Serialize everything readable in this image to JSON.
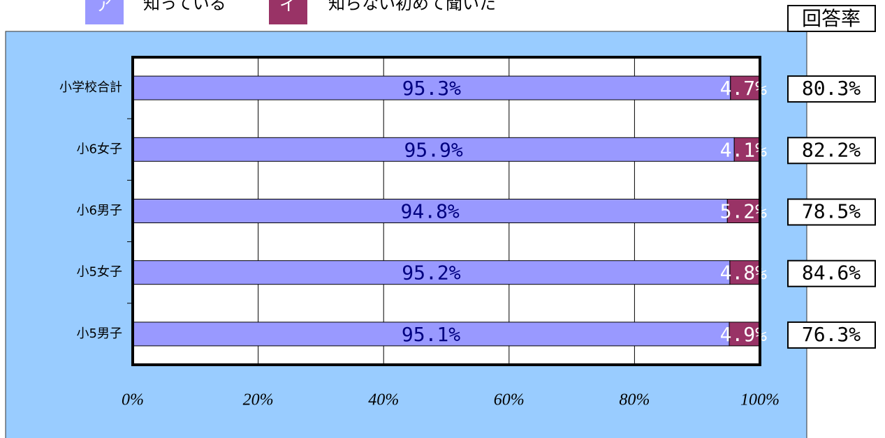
{
  "chart_data": {
    "type": "bar",
    "orientation": "horizontal",
    "stacked": true,
    "categories": [
      "小学校合計",
      "小6女子",
      "小6男子",
      "小5女子",
      "小5男子"
    ],
    "series": [
      {
        "name": "知っている",
        "symbol": "ア",
        "color": "#9999ff",
        "label_color": "#000080",
        "values": [
          95.3,
          95.9,
          94.8,
          95.2,
          95.1
        ],
        "value_labels": [
          "95.3%",
          "95.9%",
          "94.8%",
          "95.2%",
          "95.1%"
        ]
      },
      {
        "name": "知らない初めて聞いた",
        "symbol": "イ",
        "color": "#993366",
        "label_color": "#ffffff",
        "values": [
          4.7,
          4.1,
          5.2,
          4.8,
          4.9
        ],
        "value_labels": [
          "4.7%",
          "4.1%",
          "5.2%",
          "4.8%",
          "4.9%"
        ]
      }
    ],
    "xlim": [
      0,
      100
    ],
    "xticks": [
      {
        "value": 0,
        "label": "0%"
      },
      {
        "value": 20,
        "label": "20%"
      },
      {
        "value": 40,
        "label": "40%"
      },
      {
        "value": 60,
        "label": "60%"
      },
      {
        "value": 80,
        "label": "80%"
      },
      {
        "value": 100,
        "label": "100%"
      }
    ],
    "grid": true,
    "response_rate": {
      "title": "回答率",
      "values": [
        80.3,
        82.2,
        78.5,
        84.6,
        76.3
      ],
      "value_labels": [
        "80.3%",
        "82.2%",
        "78.5%",
        "84.6%",
        "76.3%"
      ]
    }
  }
}
